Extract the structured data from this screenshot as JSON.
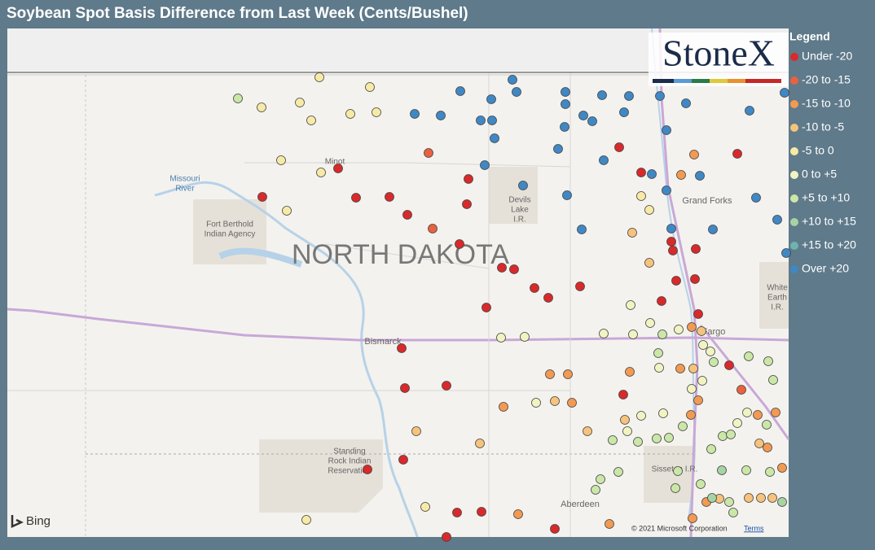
{
  "title": "Soybean Spot Basis Difference from Last Week (Cents/Bushel)",
  "legend": {
    "title": "Legend",
    "items": [
      {
        "label": "Under -20",
        "color": "#d9292b"
      },
      {
        "label": "-20 to -15",
        "color": "#e8623f"
      },
      {
        "label": "-15 to -10",
        "color": "#f29a52"
      },
      {
        "label": "-10 to -5",
        "color": "#f6c37c"
      },
      {
        "label": "-5 to 0",
        "color": "#f7eaa6"
      },
      {
        "label": "0 to +5",
        "color": "#f1f4c2"
      },
      {
        "label": "+5 to +10",
        "color": "#cbe7a8"
      },
      {
        "label": "+10 to +15",
        "color": "#a7d3a4"
      },
      {
        "label": "+15 to +20",
        "color": "#6fb3ae"
      },
      {
        "label": "Over +20",
        "color": "#3f88c5"
      }
    ]
  },
  "map": {
    "state_label": "NORTH DAKOTA",
    "places": [
      {
        "lines": [
          "Minot"
        ]
      },
      {
        "lines": [
          "Missouri",
          "River"
        ]
      },
      {
        "lines": [
          "Fort Berthold",
          "Indian Agency"
        ]
      },
      {
        "lines": [
          "Devils",
          "Lake",
          "I.R."
        ]
      },
      {
        "lines": [
          "Grand Forks"
        ]
      },
      {
        "lines": [
          "Bismarck"
        ]
      },
      {
        "lines": [
          "Fargo"
        ]
      },
      {
        "lines": [
          "Standing",
          "Rock Indian",
          "Reservation"
        ]
      },
      {
        "lines": [
          "Sisseton I.R."
        ]
      },
      {
        "lines": [
          "Aberdeen"
        ]
      },
      {
        "lines": [
          "White",
          "Earth",
          "I.R."
        ]
      }
    ],
    "logo": "StoneX",
    "bing": "Bing",
    "copyright": "© 2021 Microsoft Corporation",
    "terms": "Terms"
  }
}
